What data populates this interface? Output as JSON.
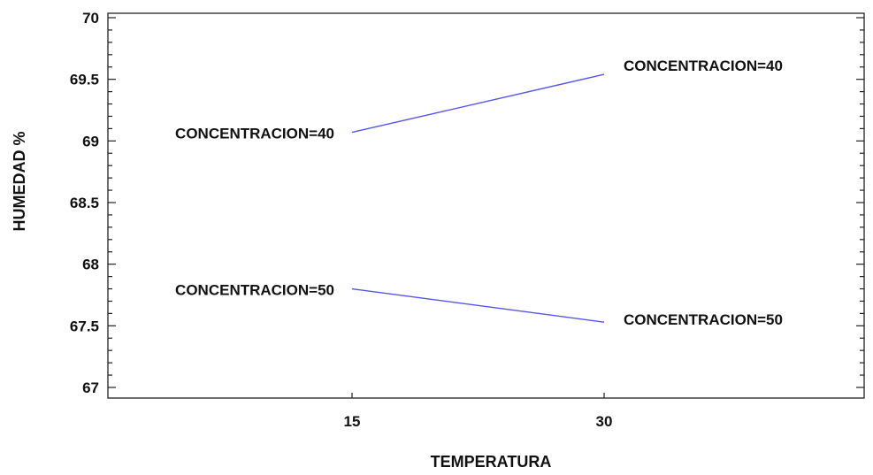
{
  "chart_data": {
    "type": "line",
    "xlabel": "TEMPERATURA",
    "ylabel": "HUMEDAD  %",
    "ylim": [
      67,
      70
    ],
    "xlim": [
      0,
      45
    ],
    "x_ticks": [
      "15",
      "30"
    ],
    "y_ticks": [
      "67",
      "67.5",
      "68",
      "68.5",
      "69",
      "69.5",
      "70"
    ],
    "grid": false,
    "series": [
      {
        "name": "CONCENTRACION=40",
        "x": [
          15,
          30
        ],
        "y": [
          69.07,
          69.54
        ],
        "start_label": "CONCENTRACION=40",
        "end_label": "CONCENTRACION=40"
      },
      {
        "name": "CONCENTRACION=50",
        "x": [
          15,
          30
        ],
        "y": [
          67.8,
          67.53
        ],
        "start_label": "CONCENTRACION=50",
        "end_label": "CONCENTRACION=50"
      }
    ],
    "colors": {
      "line": "#5555ee",
      "axis": "#222222",
      "text": "#111111"
    }
  }
}
